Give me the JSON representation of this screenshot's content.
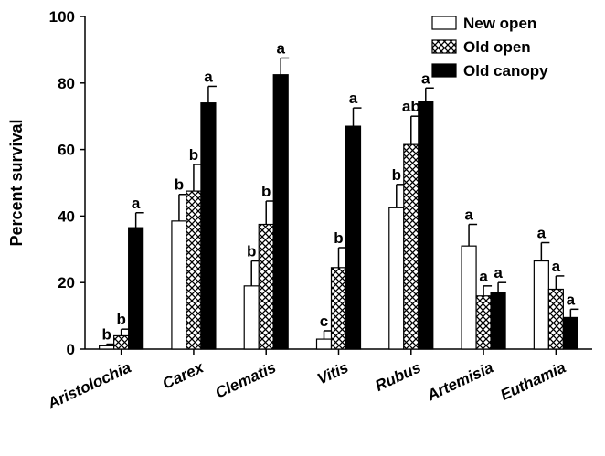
{
  "chart_data": {
    "type": "bar",
    "ylabel": "Percent survival",
    "xlabel": "",
    "ylim": [
      0,
      100
    ],
    "yticks": [
      "0",
      "20",
      "40",
      "60",
      "80",
      "100"
    ],
    "categories": [
      "Aristolochia",
      "Carex",
      "Clematis",
      "Vitis",
      "Rubus",
      "Artemisia",
      "Euthamia"
    ],
    "series": [
      {
        "name": "New open",
        "pattern": "open",
        "values": [
          1.0,
          38.5,
          19.0,
          3.0,
          42.5,
          31.0,
          26.5
        ],
        "errors": [
          0.5,
          8.0,
          7.5,
          2.5,
          7.0,
          6.5,
          5.5
        ],
        "letters": [
          "b",
          "b",
          "b",
          "c",
          "b",
          "a",
          "a"
        ]
      },
      {
        "name": "Old open",
        "pattern": "crosshatch",
        "values": [
          4.0,
          47.5,
          37.5,
          24.5,
          61.5,
          16.0,
          18.0
        ],
        "errors": [
          2.0,
          8.0,
          7.0,
          6.0,
          8.5,
          3.0,
          4.0
        ],
        "letters": [
          "b",
          "b",
          "b",
          "b",
          "ab",
          "a",
          "a"
        ]
      },
      {
        "name": "Old canopy",
        "pattern": "solid",
        "values": [
          36.5,
          74.0,
          82.5,
          67.0,
          74.5,
          17.0,
          9.5
        ],
        "errors": [
          4.5,
          5.0,
          5.0,
          5.5,
          4.0,
          3.0,
          2.5
        ],
        "letters": [
          "a",
          "a",
          "a",
          "a",
          "a",
          "a",
          "a"
        ]
      }
    ],
    "legend_position": "top-right",
    "grid": false
  }
}
